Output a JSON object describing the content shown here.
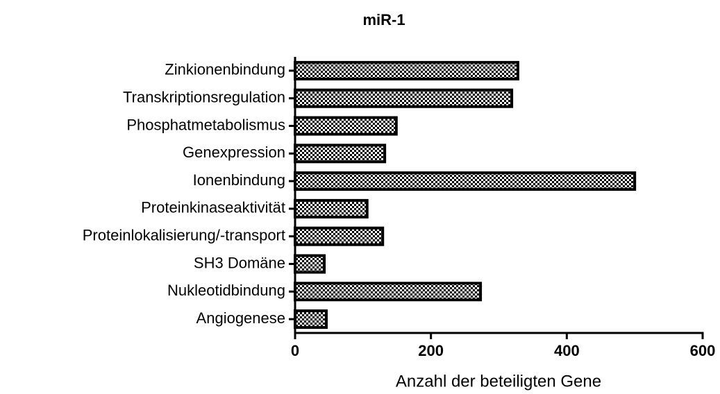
{
  "chart_data": {
    "type": "bar",
    "orientation": "horizontal",
    "title": "miR-1",
    "xlabel": "Anzahl der beteiligten Gene",
    "categories": [
      "Zinkionenbindung",
      "Transkriptionsregulation",
      "Phosphatmetabolismus",
      "Genexpression",
      "Ionenbindung",
      "Proteinkinaseaktivität",
      "Proteinlokalisierung/-transport",
      "SH3 Domäne",
      "Nukleotidbindung",
      "Angiogenese"
    ],
    "values": [
      328,
      319,
      149,
      132,
      500,
      106,
      129,
      43,
      273,
      46
    ],
    "color": "#000000",
    "xlim": [
      0,
      600
    ],
    "xticks": [
      0,
      200,
      400,
      600
    ],
    "grid": false
  }
}
